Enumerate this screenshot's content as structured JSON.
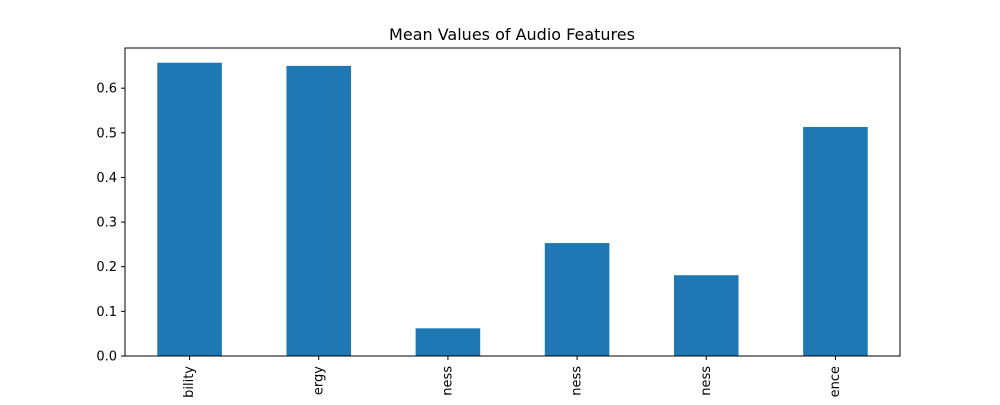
{
  "chart_data": {
    "type": "bar",
    "title": "Mean Values of Audio Features",
    "xlabel": "",
    "ylabel": "",
    "categories": [
      "bility",
      "ergy",
      "ness",
      "ness",
      "ness",
      "ence"
    ],
    "values": [
      0.657,
      0.65,
      0.062,
      0.253,
      0.181,
      0.513
    ],
    "ylim": [
      0,
      0.69
    ],
    "yticks": [
      0.0,
      0.1,
      0.2,
      0.3,
      0.4,
      0.5,
      0.6
    ],
    "ytick_labels": [
      "0.0",
      "0.1",
      "0.2",
      "0.3",
      "0.4",
      "0.5",
      "0.6"
    ],
    "bar_color": "#1f77b4",
    "grid": false,
    "legend": "none"
  }
}
